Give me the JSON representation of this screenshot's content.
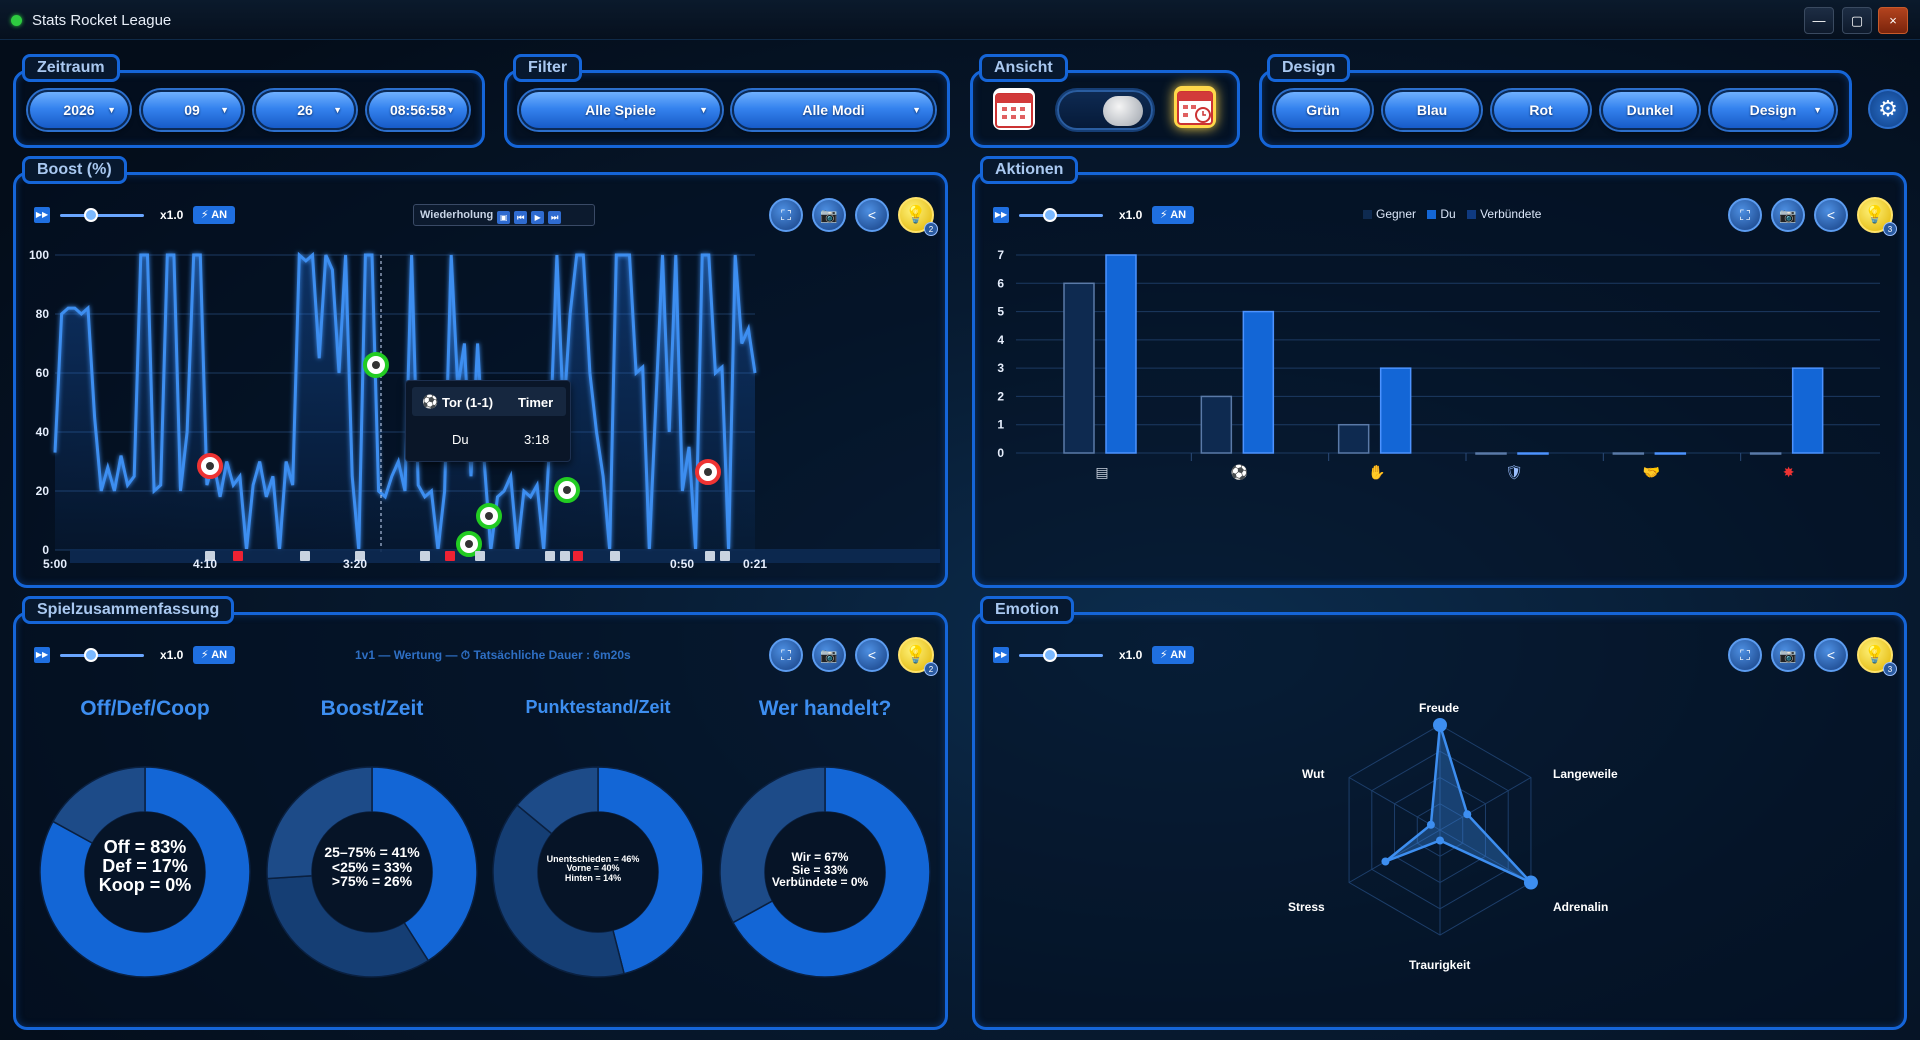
{
  "window": {
    "title": "Stats Rocket League",
    "min": "—",
    "max": "▢",
    "close": "×"
  },
  "zeitraum": {
    "title": "Zeitraum",
    "year": "2026",
    "month": "09",
    "day": "26",
    "time": "08:56:58"
  },
  "filter": {
    "title": "Filter",
    "games": "Alle Spiele",
    "modes": "Alle Modi"
  },
  "ansicht": {
    "title": "Ansicht"
  },
  "design": {
    "title": "Design",
    "options": [
      "Grün",
      "Blau",
      "Rot",
      "Dunkel",
      "Design"
    ]
  },
  "controls": {
    "speed": "x1.0",
    "auto": "⚡ AN",
    "fit": "⛶",
    "camera": "📷",
    "share": "<",
    "bulb": "💡"
  },
  "boost": {
    "title": "Boost (%)",
    "replay_label": "Wiederholung",
    "yticks": [
      "100",
      "80",
      "60",
      "40",
      "20",
      "0"
    ],
    "xticks": [
      "5:00",
      "4:10",
      "3:20",
      "0:50",
      "0:21"
    ],
    "badge": "2",
    "tooltip": {
      "h1": "Tor (1-1)",
      "h2": "Timer",
      "c1": "Du",
      "c2": "3:18"
    }
  },
  "aktionen": {
    "title": "Aktionen",
    "badge": "3",
    "legend": [
      "Gegner",
      "Du",
      "Verbündete"
    ],
    "yticks": [
      "7",
      "6",
      "5",
      "4",
      "3",
      "2",
      "1",
      "0"
    ]
  },
  "summary": {
    "title": "Spielzusammenfassung",
    "info": "1v1 — Wertung — ⏱ Tatsächliche Dauer : 6m20s",
    "badge": "2",
    "donuts": [
      {
        "title": "Off/Def/Coop",
        "lines": [
          "Off = 83%",
          "Def = 17%",
          "Koop = 0%"
        ]
      },
      {
        "title": "Boost/Zeit",
        "lines": [
          "25–75% = 41%",
          "<25% = 33%",
          ">75% = 26%"
        ]
      },
      {
        "title": "Punktestand/Zeit",
        "lines": [
          "Unentschieden = 46%",
          "Vorne = 40%",
          "Hinten = 14%"
        ]
      },
      {
        "title": "Wer handelt?",
        "lines": [
          "Wir = 67%",
          "Sie = 33%",
          "Verbündete = 0%"
        ]
      }
    ]
  },
  "emotion": {
    "title": "Emotion",
    "badge": "3",
    "labels": [
      "Freude",
      "Langeweile",
      "Adrenalin",
      "Traurigkeit",
      "Stress",
      "Wut"
    ]
  },
  "chart_data": [
    {
      "type": "line",
      "title": "Boost (%)",
      "ylim": [
        0,
        100
      ],
      "xlabel_ticks": [
        "5:00",
        "4:10",
        "3:20",
        "0:50",
        "0:21"
      ],
      "series": [
        {
          "name": "Boost",
          "values": [
            33,
            80,
            82,
            82,
            80,
            82,
            45,
            20,
            28,
            20,
            32,
            22,
            25,
            100,
            100,
            20,
            22,
            100,
            100,
            20,
            40,
            100,
            100,
            22,
            30,
            18,
            30,
            22,
            25,
            0,
            22,
            30,
            18,
            25,
            0,
            30,
            22,
            100,
            98,
            100,
            65,
            100,
            95,
            60,
            100,
            25,
            0,
            100,
            100,
            20,
            18,
            25,
            30,
            20,
            100,
            22,
            18,
            20,
            0,
            20,
            100,
            55,
            70,
            25,
            70,
            30,
            0,
            18,
            20,
            25,
            0,
            20,
            18,
            22,
            0,
            40,
            100,
            45,
            80,
            100,
            100,
            60,
            40,
            25,
            0,
            100,
            100,
            100,
            60,
            62,
            0,
            50,
            100,
            40,
            100,
            20,
            35,
            0,
            100,
            100,
            60,
            62,
            0,
            100,
            70,
            75,
            60
          ]
        }
      ],
      "events": [
        {
          "t": "4:18",
          "type": "Tor Gegner"
        },
        {
          "t": "3:18",
          "type": "Tor (1-1)"
        },
        {
          "t": "2:07",
          "type": "Tor Du"
        },
        {
          "t": "1:37",
          "type": "Tor Du"
        },
        {
          "t": "0:28",
          "type": "Tor Gegner"
        }
      ]
    },
    {
      "type": "bar",
      "title": "Aktionen",
      "ylim": [
        0,
        7
      ],
      "categories": [
        "Angriff",
        "Tor",
        "Schuss",
        "Abwehr",
        "Assist",
        "Zerstört"
      ],
      "series": [
        {
          "name": "Gegner",
          "values": [
            6,
            2,
            1,
            0,
            0,
            0
          ]
        },
        {
          "name": "Du",
          "values": [
            7,
            5,
            3,
            0,
            0,
            3
          ]
        },
        {
          "name": "Verbündete",
          "values": [
            0,
            0,
            0,
            0,
            0,
            0
          ]
        }
      ]
    },
    {
      "type": "pie",
      "title": "Off/Def/Coop",
      "categories": [
        "Off",
        "Def",
        "Koop"
      ],
      "values": [
        83,
        17,
        0
      ]
    },
    {
      "type": "pie",
      "title": "Boost/Zeit",
      "categories": [
        "25–75%",
        "<25%",
        ">75%"
      ],
      "values": [
        41,
        33,
        26
      ]
    },
    {
      "type": "pie",
      "title": "Punktestand/Zeit",
      "categories": [
        "Unentschieden",
        "Vorne",
        "Hinten"
      ],
      "values": [
        46,
        40,
        14
      ]
    },
    {
      "type": "pie",
      "title": "Wer handelt?",
      "categories": [
        "Wir",
        "Sie",
        "Verbündete"
      ],
      "values": [
        67,
        33,
        0
      ]
    },
    {
      "type": "radar",
      "title": "Emotion",
      "categories": [
        "Freude",
        "Langeweile",
        "Adrenalin",
        "Traurigkeit",
        "Stress",
        "Wut"
      ],
      "values": [
        1.0,
        0.3,
        1.0,
        0.1,
        0.6,
        0.1
      ],
      "max": 1
    }
  ],
  "colors": {
    "accent": "#1565d8",
    "line": "#3d8ef0",
    "bar_dark": "#0e2a50",
    "bar_blue": "#1366d6"
  }
}
